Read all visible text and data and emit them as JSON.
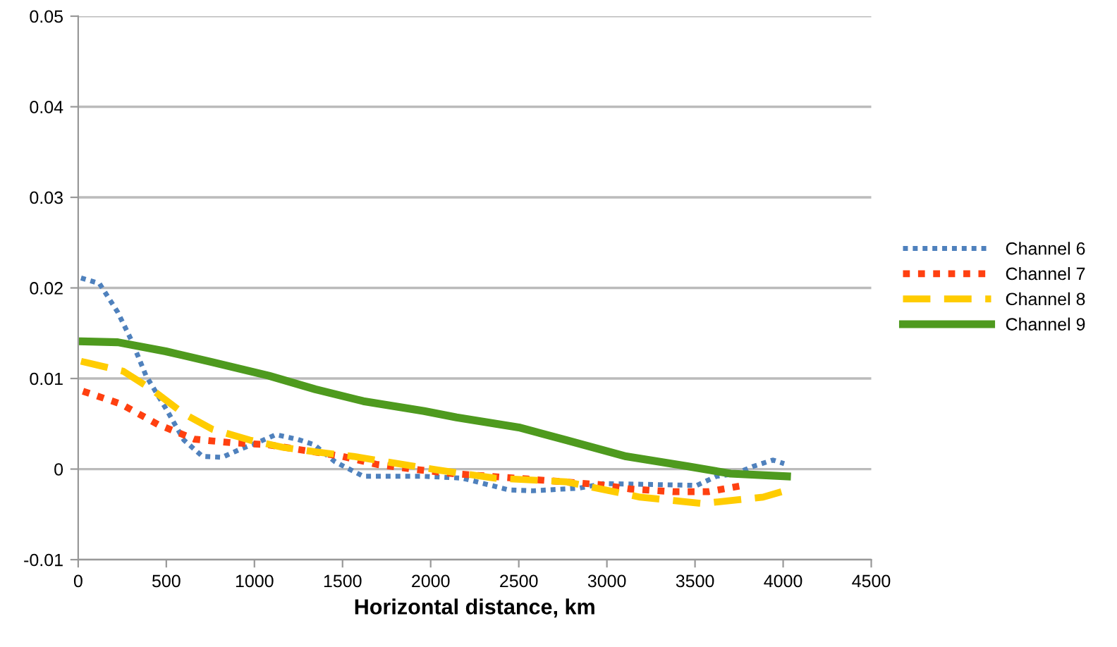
{
  "chart_data": {
    "type": "line",
    "xlabel": "Horizontal distance, km",
    "xlim": [
      0,
      4500
    ],
    "xticks": [
      0,
      500,
      1000,
      1500,
      2000,
      2500,
      3000,
      3500,
      4000,
      4500
    ],
    "ylim": [
      -0.01,
      0.05
    ],
    "yticks": [
      -0.01,
      0,
      0.01,
      0.02,
      0.03,
      0.04,
      0.05
    ],
    "grid": "y",
    "legend": "right",
    "marker": "none",
    "series": [
      {
        "name": "Channel 6",
        "color": "#4f81bd",
        "line_style": "dotted",
        "x": [
          16,
          120,
          225,
          305,
          385,
          497,
          600,
          705,
          817,
          921,
          1026,
          1122,
          1242,
          1338,
          1458,
          1618,
          1963,
          2179,
          2444,
          2580,
          2845,
          2980,
          3510,
          3622,
          3730,
          3830,
          3942,
          4006
        ],
        "values": [
          0.0211,
          0.0205,
          0.0173,
          0.0141,
          0.0103,
          0.0067,
          0.0032,
          0.0014,
          0.0013,
          0.0022,
          0.003,
          0.0038,
          0.0033,
          0.0027,
          0.0008,
          -0.0008,
          -0.0008,
          -0.001,
          -0.0023,
          -0.0024,
          -0.0021,
          -0.0016,
          -0.0018,
          -0.0008,
          -0.0005,
          0.0003,
          0.001,
          0.0006
        ]
      },
      {
        "name": "Channel 7",
        "color": "#ff4010",
        "line_style": "dotted",
        "x": [
          27,
          240,
          455,
          660,
          873,
          1074,
          1500,
          1698,
          1896,
          2124,
          2550,
          2948,
          3135,
          3375,
          3575,
          3775
        ],
        "values": [
          0.0086,
          0.0072,
          0.0049,
          0.0033,
          0.0029,
          0.0027,
          0.0014,
          0.0005,
          0,
          -0.0005,
          -0.0011,
          -0.0017,
          -0.0022,
          -0.0025,
          -0.0025,
          -0.0018
        ]
      },
      {
        "name": "Channel 8",
        "color": "#ffcc00",
        "line_style": "dashed",
        "x": [
          16,
          256,
          417,
          600,
          761,
          974,
          1162,
          1346,
          1562,
          1750,
          2040,
          2364,
          2768,
          3189,
          3542,
          3886,
          3992
        ],
        "values": [
          0.0119,
          0.0108,
          0.0088,
          0.0061,
          0.0044,
          0.0032,
          0.0024,
          0.0019,
          0.0014,
          0.0008,
          -0.0001,
          -0.001,
          -0.0014,
          -0.0031,
          -0.0038,
          -0.0031,
          -0.0025
        ]
      },
      {
        "name": "Channel 9",
        "color": "#4e9a1e",
        "line_style": "solid",
        "x": [
          16,
          225,
          497,
          761,
          1082,
          1346,
          1618,
          1963,
          2147,
          2500,
          2768,
          3109,
          3462,
          3702,
          4022
        ],
        "values": [
          0.0141,
          0.014,
          0.013,
          0.0118,
          0.0103,
          0.0088,
          0.0075,
          0.0064,
          0.0057,
          0.0046,
          0.0032,
          0.0014,
          0.0003,
          -0.0005,
          -0.0008
        ]
      }
    ]
  }
}
